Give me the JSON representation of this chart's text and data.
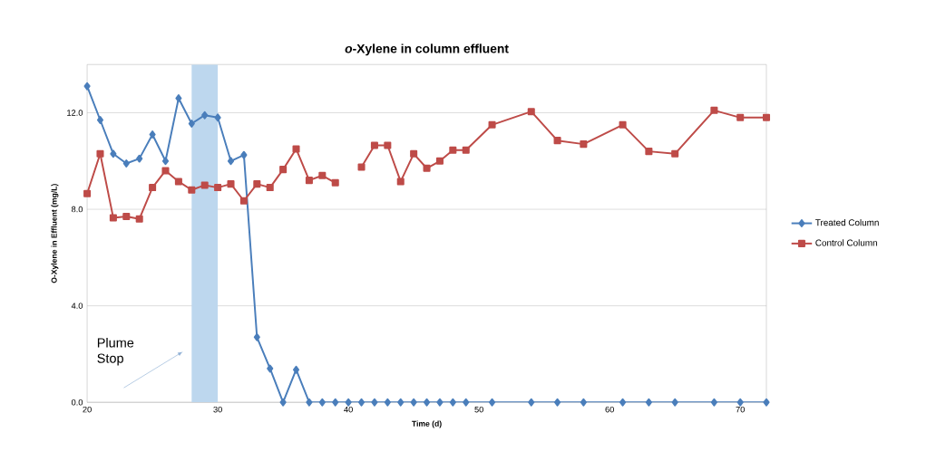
{
  "chart_data": {
    "type": "line",
    "title": "*o*-Xylene in column effluent",
    "xlabel": "Time (d)",
    "ylabel": "O-Xylene in Effluent (mg/L)",
    "xlim": [
      20,
      72
    ],
    "xticks": [
      20,
      30,
      40,
      50,
      60,
      70
    ],
    "ylim": [
      0,
      14
    ],
    "yticks": [
      {
        "value": 0,
        "label": "0.0"
      },
      {
        "value": 4,
        "label": "4.0"
      },
      {
        "value": 8,
        "label": "8.0"
      },
      {
        "value": 12,
        "label": "12.0"
      }
    ],
    "grid": "y",
    "legend": "right",
    "bands": [
      {
        "axis": "x",
        "from": 28,
        "to": 30,
        "color": "#bdd7ee"
      }
    ],
    "annotations": [
      "Plume Stop"
    ],
    "series": [
      {
        "name": "Treated Column",
        "color": "#4a7ebb",
        "marker": "diamond",
        "x": [
          20,
          21,
          22,
          23,
          24,
          25,
          26,
          27,
          28,
          29,
          30,
          31,
          32,
          33,
          34,
          35,
          36,
          37,
          38,
          39,
          40,
          41,
          42,
          43,
          44,
          45,
          46,
          47,
          48,
          49,
          51,
          54,
          56,
          58,
          61,
          63,
          65,
          68,
          70,
          72
        ],
        "values": [
          13.1,
          11.7,
          10.3,
          9.9,
          10.1,
          11.1,
          10.0,
          12.6,
          11.55,
          11.9,
          11.8,
          10.0,
          10.25,
          2.7,
          1.4,
          0,
          1.35,
          0,
          0,
          0,
          0,
          0,
          0,
          0,
          0,
          0,
          0,
          0,
          0,
          0,
          0,
          0,
          0,
          0,
          0,
          0,
          0,
          0,
          0,
          0
        ]
      },
      {
        "name": "Control Column",
        "color": "#be4b48",
        "marker": "square",
        "x": [
          20,
          21,
          22,
          23,
          24,
          25,
          26,
          27,
          28,
          29,
          30,
          31,
          32,
          33,
          34,
          35,
          36,
          37,
          38,
          39,
          40,
          41,
          42,
          43,
          44,
          45,
          46,
          47,
          48,
          49,
          51,
          54,
          56,
          58,
          61,
          63,
          65,
          68,
          70,
          72
        ],
        "values": [
          8.65,
          10.3,
          7.65,
          7.7,
          7.6,
          8.9,
          9.6,
          9.15,
          8.8,
          9.0,
          8.9,
          9.05,
          8.35,
          9.05,
          8.9,
          9.65,
          10.5,
          9.2,
          9.4,
          9.1,
          null,
          9.75,
          10.65,
          10.65,
          9.15,
          10.3,
          9.7,
          10.0,
          10.45,
          10.45,
          11.5,
          12.05,
          10.85,
          10.7,
          11.5,
          10.4,
          10.3,
          12.1,
          11.8,
          11.8
        ]
      }
    ]
  }
}
